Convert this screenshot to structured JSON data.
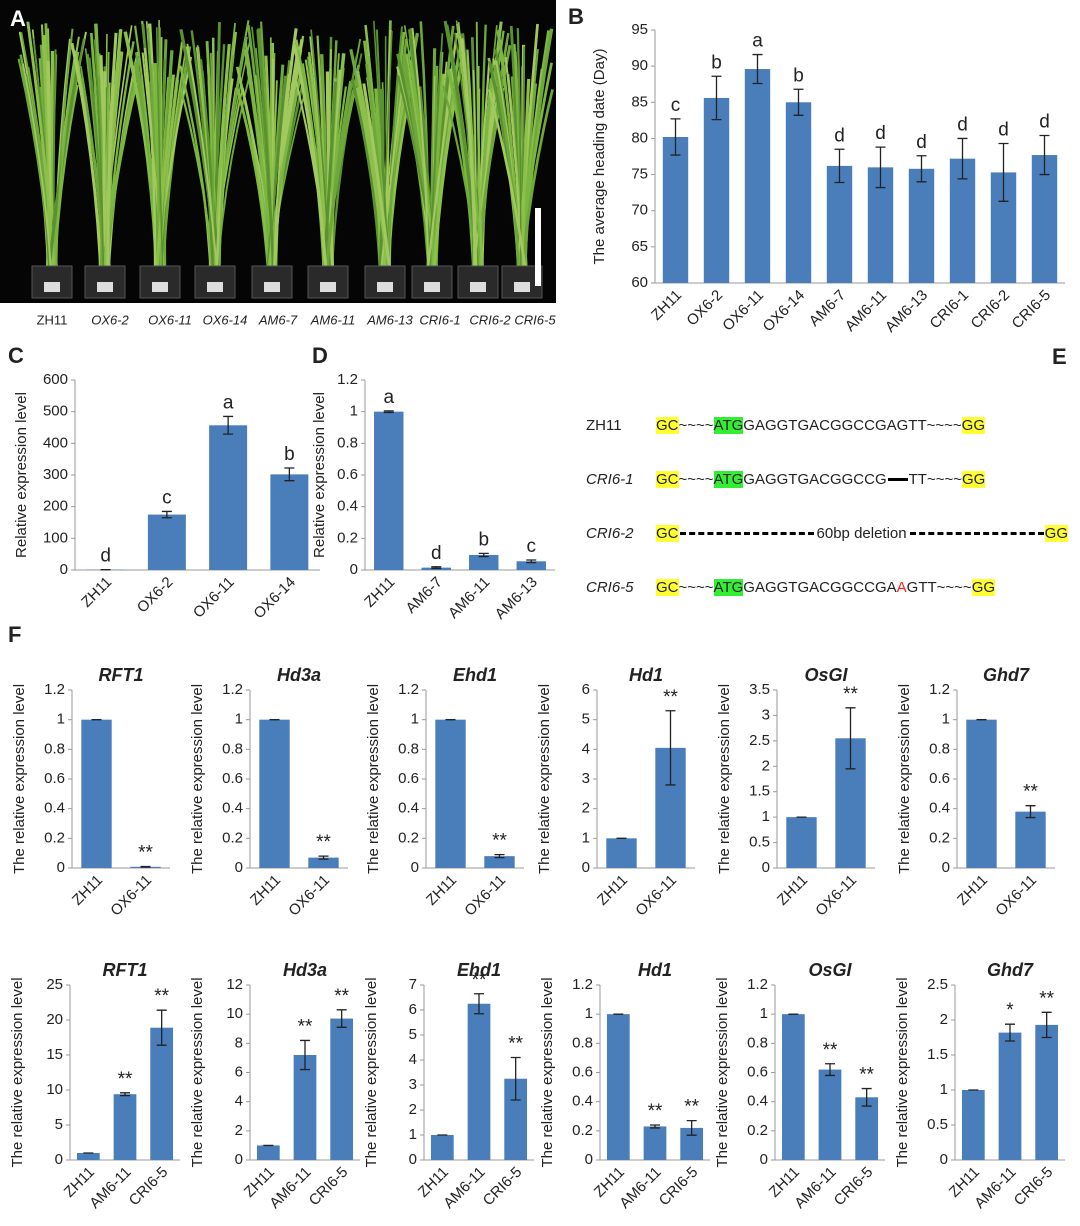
{
  "photo": {
    "panel": "A",
    "labels": [
      "ZH11",
      "OX6-2",
      "OX6-11",
      "OX6-14",
      "AM6-7",
      "AM6-11",
      "AM6-13",
      "CRI6-1",
      "CRI6-2",
      "CRI6-5"
    ]
  },
  "sequences": {
    "panel": "E",
    "rows": [
      {
        "name": "ZH11",
        "segments": [
          {
            "text": "GC",
            "highlight": "#ffff33"
          },
          {
            "text": "~~~~"
          },
          {
            "text": "ATG",
            "highlight": "#33ee33"
          },
          {
            "text": "GAGGTGACGGCCGAGTT"
          },
          {
            "text": "~~~~"
          },
          {
            "text": "GG",
            "highlight": "#ffff33"
          }
        ]
      },
      {
        "name": "CRI6-1",
        "segments": [
          {
            "text": "GC",
            "highlight": "#ffff33"
          },
          {
            "text": "~~~~"
          },
          {
            "text": "ATG",
            "highlight": "#33ee33"
          },
          {
            "text": "GAGGTGACGGCCG"
          },
          {
            "deletion": true
          },
          {
            "text": "TT"
          },
          {
            "text": "~~~~"
          },
          {
            "text": "GG",
            "highlight": "#ffff33"
          }
        ]
      },
      {
        "name": "CRI6-2",
        "segments": [
          {
            "text": "GC",
            "highlight": "#ffff33"
          },
          {
            "deletion": true
          },
          {
            "text": "60bp deletion"
          },
          {
            "deletion": true
          },
          {
            "text": "GG",
            "highlight": "#ffff33"
          }
        ]
      },
      {
        "name": "CRI6-5",
        "segments": [
          {
            "text": "GC",
            "highlight": "#ffff33"
          },
          {
            "text": "~~~~"
          },
          {
            "text": "ATG",
            "highlight": "#33ee33"
          },
          {
            "text": "GAGGTGACGGCCGA"
          },
          {
            "text": "A",
            "color": "#ff2020"
          },
          {
            "text": "GTT"
          },
          {
            "text": "~~~~"
          },
          {
            "text": "GG",
            "highlight": "#ffff33"
          }
        ]
      }
    ]
  },
  "figure_f": {
    "panel": "F"
  },
  "chart_data": [
    {
      "type": "bar",
      "panel": "B",
      "ylabel": "The average heading date (Day)",
      "color": "#4a7ebb",
      "categories": [
        "ZH11",
        "OX6-2",
        "OX6-11",
        "OX6-14",
        "AM6-7",
        "AM6-11",
        "AM6-13",
        "CRI6-1",
        "CRI6-2",
        "CRI6-5"
      ],
      "values": [
        80.2,
        85.6,
        89.6,
        85.0,
        76.2,
        76.0,
        75.8,
        77.2,
        75.3,
        77.7
      ],
      "errors": [
        2.5,
        3.0,
        2.0,
        1.8,
        2.3,
        2.8,
        1.8,
        2.8,
        4.0,
        2.7
      ],
      "annotations": [
        "c",
        "b",
        "a",
        "b",
        "d",
        "d",
        "d",
        "d",
        "d",
        "d"
      ],
      "ylim": [
        60,
        95
      ],
      "yticks": [
        60,
        65,
        70,
        75,
        80,
        85,
        90,
        95
      ]
    },
    {
      "type": "bar",
      "panel": "C",
      "ylabel": "Relative expression level",
      "color": "#4a7ebb",
      "categories": [
        "ZH11",
        "OX6-2",
        "OX6-11",
        "OX6-14"
      ],
      "values": [
        1,
        175,
        457,
        302
      ],
      "errors": [
        0,
        10,
        28,
        20
      ],
      "annotations": [
        "d",
        "c",
        "a",
        "b"
      ],
      "ylim": [
        0,
        600
      ],
      "yticks": [
        0,
        100,
        200,
        300,
        400,
        500,
        600
      ]
    },
    {
      "type": "bar",
      "panel": "D",
      "ylabel": "Relative expression level",
      "color": "#4a7ebb",
      "categories": [
        "ZH11",
        "AM6-7",
        "AM6-11",
        "AM6-13"
      ],
      "values": [
        1,
        0.015,
        0.095,
        0.055
      ],
      "errors": [
        0.005,
        0.005,
        0.01,
        0.008
      ],
      "annotations": [
        "a",
        "d",
        "b",
        "c"
      ],
      "ylim": [
        0,
        1.2
      ],
      "yticks": [
        0,
        0.2,
        0.4,
        0.6,
        0.8,
        1,
        1.2
      ]
    },
    {
      "type": "bar",
      "title": "RFT1",
      "ylabel": "The relative expression level",
      "color": "#4a7ebb",
      "categories": [
        "ZH11",
        "OX6-11"
      ],
      "values": [
        1,
        0.008
      ],
      "errors": [
        0,
        0.002
      ],
      "annotations": [
        null,
        "**"
      ],
      "ylim": [
        0,
        1.2
      ],
      "yticks": [
        0,
        0.2,
        0.4,
        0.6,
        0.8,
        1,
        1.2
      ]
    },
    {
      "type": "bar",
      "title": "Hd3a",
      "ylabel": "The relative expression level",
      "color": "#4a7ebb",
      "categories": [
        "ZH11",
        "OX6-11"
      ],
      "values": [
        1,
        0.07
      ],
      "errors": [
        0,
        0.01
      ],
      "annotations": [
        null,
        "**"
      ],
      "ylim": [
        0,
        1.2
      ],
      "yticks": [
        0,
        0.2,
        0.4,
        0.6,
        0.8,
        1,
        1.2
      ]
    },
    {
      "type": "bar",
      "title": "Ehd1",
      "ylabel": "The relative expression level",
      "color": "#4a7ebb",
      "categories": [
        "ZH11",
        "OX6-11"
      ],
      "values": [
        1,
        0.08
      ],
      "errors": [
        0,
        0.01
      ],
      "annotations": [
        null,
        "**"
      ],
      "ylim": [
        0,
        1.2
      ],
      "yticks": [
        0,
        0.2,
        0.4,
        0.6,
        0.8,
        1,
        1.2
      ]
    },
    {
      "type": "bar",
      "title": "Hd1",
      "ylabel": "The relative expression level",
      "color": "#4a7ebb",
      "categories": [
        "ZH11",
        "OX6-11"
      ],
      "values": [
        1,
        4.05
      ],
      "errors": [
        0,
        1.25
      ],
      "annotations": [
        null,
        "**"
      ],
      "ylim": [
        0,
        6
      ],
      "yticks": [
        0,
        1,
        2,
        3,
        4,
        5,
        6
      ]
    },
    {
      "type": "bar",
      "title": "OsGI",
      "ylabel": "The relative expression level",
      "color": "#4a7ebb",
      "categories": [
        "ZH11",
        "OX6-11"
      ],
      "values": [
        1,
        2.55
      ],
      "errors": [
        0,
        0.6
      ],
      "annotations": [
        null,
        "**"
      ],
      "ylim": [
        0,
        3.5
      ],
      "yticks": [
        0,
        0.5,
        1,
        1.5,
        2,
        2.5,
        3,
        3.5
      ]
    },
    {
      "type": "bar",
      "title": "Ghd7",
      "ylabel": "The relative expression level",
      "color": "#4a7ebb",
      "categories": [
        "ZH11",
        "OX6-11"
      ],
      "values": [
        1,
        0.38
      ],
      "errors": [
        0,
        0.04
      ],
      "annotations": [
        null,
        "**"
      ],
      "ylim": [
        0,
        1.2
      ],
      "yticks": [
        0,
        0.2,
        0.4,
        0.6,
        0.8,
        1,
        1.2
      ]
    },
    {
      "type": "bar",
      "title": "RFT1",
      "ylabel": "The relative expression level",
      "color": "#4a7ebb",
      "categories": [
        "ZH11",
        "AM6-11",
        "CRI6-5"
      ],
      "values": [
        1,
        9.4,
        18.9
      ],
      "errors": [
        0,
        0.2,
        2.5
      ],
      "annotations": [
        null,
        "**",
        "**"
      ],
      "ylim": [
        0,
        25
      ],
      "yticks": [
        0,
        5,
        10,
        15,
        20,
        25
      ]
    },
    {
      "type": "bar",
      "title": "Hd3a",
      "ylabel": "The relative expression level",
      "color": "#4a7ebb",
      "categories": [
        "ZH11",
        "AM6-11",
        "CRI6-5"
      ],
      "values": [
        1,
        7.2,
        9.7
      ],
      "errors": [
        0,
        1.0,
        0.6
      ],
      "annotations": [
        null,
        "**",
        "**"
      ],
      "ylim": [
        0,
        12
      ],
      "yticks": [
        0,
        2,
        4,
        6,
        8,
        10,
        12
      ]
    },
    {
      "type": "bar",
      "title": "Ehd1",
      "ylabel": "The relative expression level",
      "color": "#4a7ebb",
      "categories": [
        "ZH11",
        "AM6-11",
        "CRI6-5"
      ],
      "values": [
        1,
        6.25,
        3.25
      ],
      "errors": [
        0,
        0.4,
        0.85
      ],
      "annotations": [
        null,
        "**",
        "**"
      ],
      "ylim": [
        0,
        7
      ],
      "yticks": [
        0,
        1,
        2,
        3,
        4,
        5,
        6,
        7
      ]
    },
    {
      "type": "bar",
      "title": "Hd1",
      "ylabel": "The relative expression level",
      "color": "#4a7ebb",
      "categories": [
        "ZH11",
        "AM6-11",
        "CRI6-5"
      ],
      "values": [
        1,
        0.23,
        0.22
      ],
      "errors": [
        0,
        0.01,
        0.05
      ],
      "annotations": [
        null,
        "**",
        "**"
      ],
      "ylim": [
        0,
        1.2
      ],
      "yticks": [
        0,
        0.2,
        0.4,
        0.6,
        0.8,
        1,
        1.2
      ]
    },
    {
      "type": "bar",
      "title": "OsGI",
      "ylabel": "The relative expression level",
      "color": "#4a7ebb",
      "categories": [
        "ZH11",
        "AM6-11",
        "CRI6-5"
      ],
      "values": [
        1,
        0.62,
        0.43
      ],
      "errors": [
        0,
        0.04,
        0.06
      ],
      "annotations": [
        null,
        "**",
        "**"
      ],
      "ylim": [
        0,
        1.2
      ],
      "yticks": [
        0,
        0.2,
        0.4,
        0.6,
        0.8,
        1,
        1.2
      ]
    },
    {
      "type": "bar",
      "title": "Ghd7",
      "ylabel": "The relative expression level",
      "color": "#4a7ebb",
      "categories": [
        "ZH11",
        "AM6-11",
        "CRI6-5"
      ],
      "values": [
        1,
        1.82,
        1.93
      ],
      "errors": [
        0,
        0.12,
        0.18
      ],
      "annotations": [
        null,
        "*",
        "**"
      ],
      "ylim": [
        0,
        2.5
      ],
      "yticks": [
        0,
        0.5,
        1,
        1.5,
        2,
        2.5
      ]
    }
  ]
}
